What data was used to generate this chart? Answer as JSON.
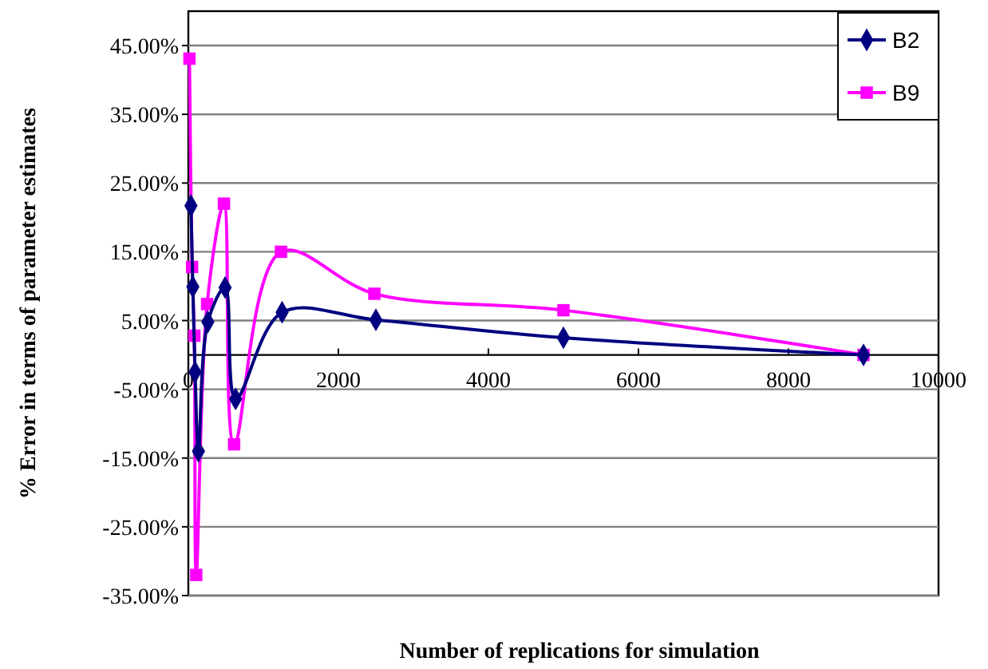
{
  "chart_data": {
    "type": "line",
    "xlabel": "Number of replications for simulation",
    "ylabel": "% Error in terms of parameter estimates",
    "xlim": [
      0,
      10000
    ],
    "xticks": [
      0,
      2000,
      4000,
      6000,
      8000,
      10000
    ],
    "ylim": [
      -35,
      50
    ],
    "yticks": [
      {
        "value": 45,
        "label": "45.00%"
      },
      {
        "value": 35,
        "label": "35.00%"
      },
      {
        "value": 25,
        "label": "25.00%"
      },
      {
        "value": 15,
        "label": "15.00%"
      },
      {
        "value": 5,
        "label": "5.00%"
      },
      {
        "value": -5,
        "label": "-5.00%"
      },
      {
        "value": -15,
        "label": "-15.00%"
      },
      {
        "value": -25,
        "label": "-25.00%"
      },
      {
        "value": -35,
        "label": "-35.00%"
      }
    ],
    "grid": "y",
    "legend": "top right",
    "line_style": "solid",
    "series": [
      {
        "name": "B2",
        "color": "#000080",
        "marker": "diamond",
        "x": [
          35,
          60,
          90,
          135,
          260,
          490,
          630,
          1250,
          2500,
          5000,
          9000
        ],
        "values": [
          21.7,
          9.9,
          -2.5,
          -14,
          4.8,
          9.8,
          -6.4,
          6.2,
          5.1,
          2.5,
          0
        ]
      },
      {
        "name": "B9",
        "color": "#ff00ff",
        "marker": "square",
        "x": [
          15,
          50,
          80,
          105,
          250,
          475,
          610,
          1235,
          2480,
          5000,
          9000
        ],
        "values": [
          43.1,
          12.8,
          2.8,
          -32,
          7.4,
          22,
          -13,
          15,
          8.9,
          6.5,
          0
        ]
      }
    ]
  }
}
